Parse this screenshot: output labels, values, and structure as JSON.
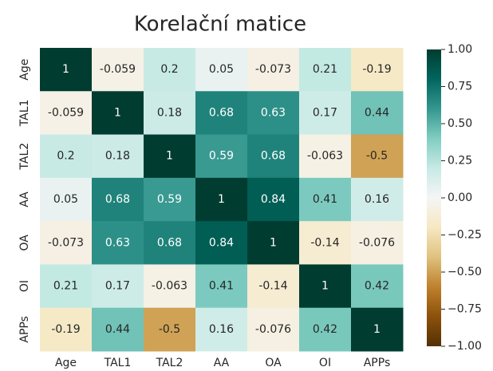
{
  "chart_data": {
    "type": "heatmap",
    "title": "Korelační matice",
    "categories": [
      "Age",
      "TAL1",
      "TAL2",
      "AA",
      "OA",
      "OI",
      "APPs"
    ],
    "y_categories": [
      "Age",
      "TAL1",
      "TAL2",
      "AA",
      "OA",
      "OI",
      "APPs"
    ],
    "values": [
      [
        1,
        -0.059,
        0.2,
        0.05,
        -0.073,
        0.21,
        -0.19
      ],
      [
        -0.059,
        1,
        0.18,
        0.68,
        0.63,
        0.17,
        0.44
      ],
      [
        0.2,
        0.18,
        1,
        0.59,
        0.68,
        -0.063,
        -0.5
      ],
      [
        0.05,
        0.68,
        0.59,
        1,
        0.84,
        0.41,
        0.16
      ],
      [
        -0.073,
        0.63,
        0.68,
        0.84,
        1,
        -0.14,
        -0.076
      ],
      [
        0.21,
        0.17,
        -0.063,
        0.41,
        -0.14,
        1,
        0.42
      ],
      [
        -0.19,
        0.44,
        -0.5,
        0.16,
        -0.076,
        0.42,
        1
      ]
    ],
    "colormap": "BrBG",
    "zlim": [
      -1,
      1
    ],
    "zticks": [
      {
        "value": 1,
        "label": "1.00"
      },
      {
        "value": 0.75,
        "label": "0.75"
      },
      {
        "value": 0.5,
        "label": "0.50"
      },
      {
        "value": 0.25,
        "label": "0.25"
      },
      {
        "value": 0,
        "label": "0.00"
      },
      {
        "value": -0.25,
        "label": "−0.25"
      },
      {
        "value": -0.5,
        "label": "−0.50"
      },
      {
        "value": -0.75,
        "label": "−0.75"
      },
      {
        "value": -1,
        "label": "−1.00"
      }
    ]
  }
}
